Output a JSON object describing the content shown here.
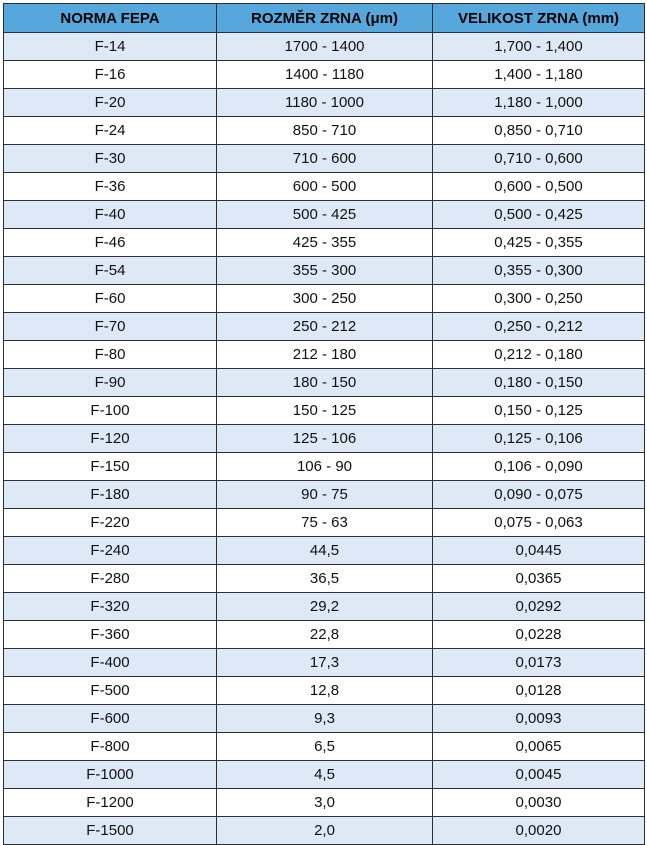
{
  "header": {
    "col1": "NORMA FEPA",
    "col2": "ROZMĚR ZRNA (μm)",
    "col3": "VELIKOST ZRNA (mm)"
  },
  "colors": {
    "header_bg": "#56a8dc",
    "alt_row_bg": "#dde9f6",
    "row_bg": "#ffffff",
    "border": "#2f2f2f"
  },
  "rows": [
    [
      "F-14",
      "1700 - 1400",
      "1,700 - 1,400"
    ],
    [
      "F-16",
      "1400 - 1180",
      "1,400 - 1,180"
    ],
    [
      "F-20",
      "1180 - 1000",
      "1,180 - 1,000"
    ],
    [
      "F-24",
      "850 - 710",
      "0,850 - 0,710"
    ],
    [
      "F-30",
      "710 - 600",
      "0,710 - 0,600"
    ],
    [
      "F-36",
      "600 - 500",
      "0,600 - 0,500"
    ],
    [
      "F-40",
      "500 - 425",
      "0,500 - 0,425"
    ],
    [
      "F-46",
      "425 - 355",
      "0,425 - 0,355"
    ],
    [
      "F-54",
      "355 - 300",
      "0,355 - 0,300"
    ],
    [
      "F-60",
      "300 - 250",
      "0,300 - 0,250"
    ],
    [
      "F-70",
      "250 - 212",
      "0,250 - 0,212"
    ],
    [
      "F-80",
      "212 - 180",
      "0,212 - 0,180"
    ],
    [
      "F-90",
      "180 - 150",
      "0,180 - 0,150"
    ],
    [
      "F-100",
      "150 - 125",
      "0,150 - 0,125"
    ],
    [
      "F-120",
      "125 - 106",
      "0,125 - 0,106"
    ],
    [
      "F-150",
      "106 - 90",
      "0,106 - 0,090"
    ],
    [
      "F-180",
      "90 - 75",
      "0,090 - 0,075"
    ],
    [
      "F-220",
      "75 - 63",
      "0,075 - 0,063"
    ],
    [
      "F-240",
      "44,5",
      "0,0445"
    ],
    [
      "F-280",
      "36,5",
      "0,0365"
    ],
    [
      "F-320",
      "29,2",
      "0,0292"
    ],
    [
      "F-360",
      "22,8",
      "0,0228"
    ],
    [
      "F-400",
      "17,3",
      "0,0173"
    ],
    [
      "F-500",
      "12,8",
      "0,0128"
    ],
    [
      "F-600",
      "9,3",
      "0,0093"
    ],
    [
      "F-800",
      "6,5",
      "0,0065"
    ],
    [
      "F-1000",
      "4,5",
      "0,0045"
    ],
    [
      "F-1200",
      "3,0",
      "0,0030"
    ],
    [
      "F-1500",
      "2,0",
      "0,0020"
    ]
  ]
}
